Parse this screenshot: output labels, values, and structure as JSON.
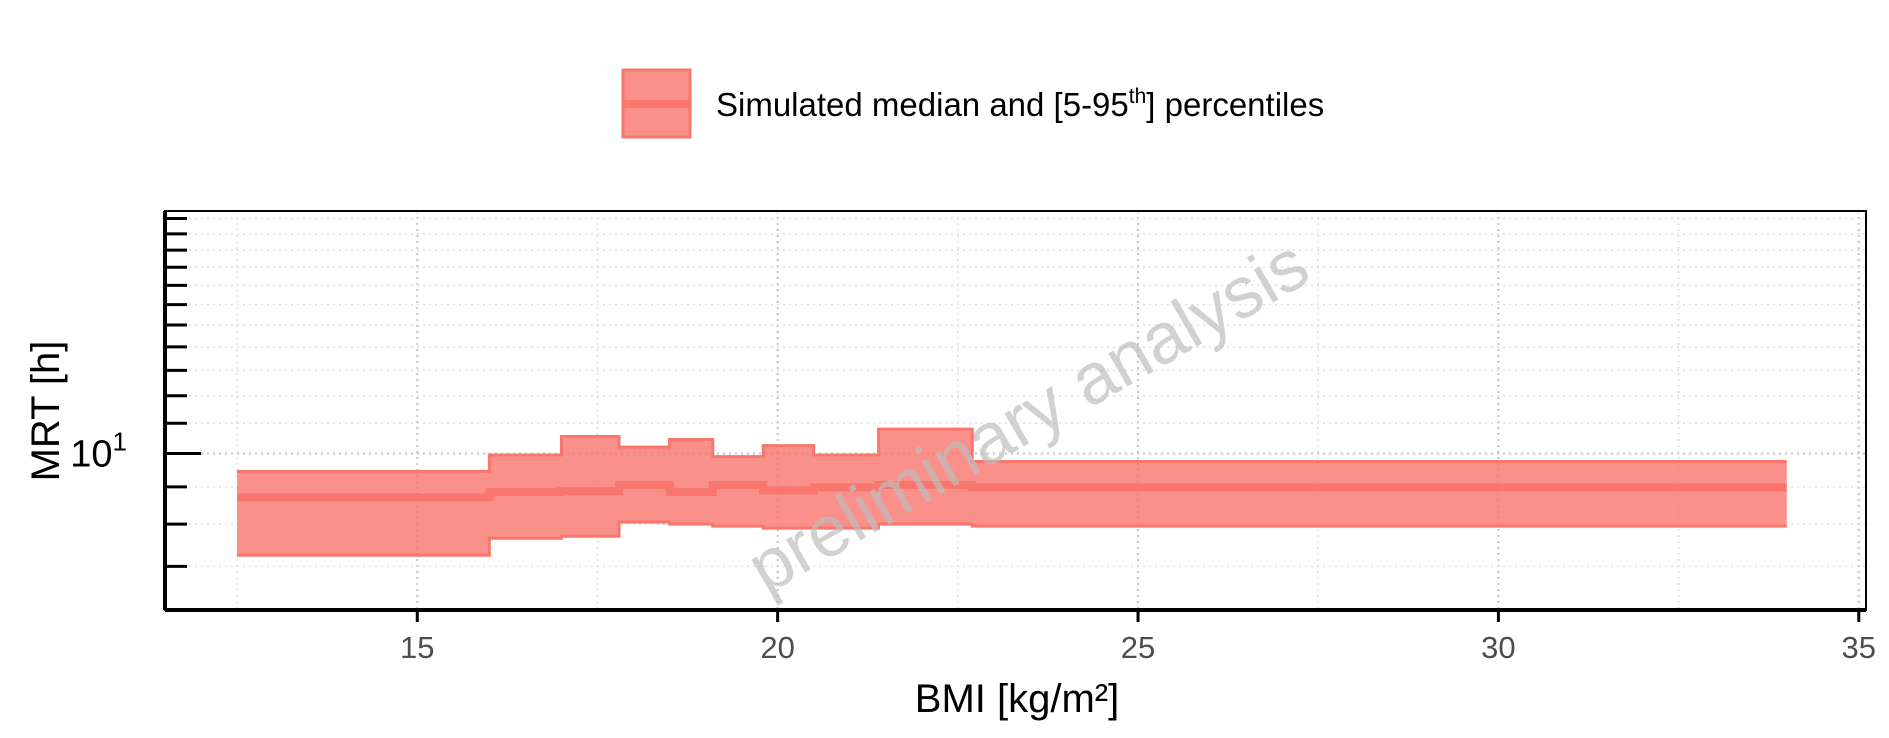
{
  "legend": {
    "label_main": "Simulated median and [5-95",
    "label_sup": "th",
    "label_tail": "] percentiles",
    "color": "#f8766d"
  },
  "watermark": "preliminary analysis",
  "chart_data": {
    "type": "area",
    "title": "",
    "xlabel": "BMI [kg/m²]",
    "ylabel": "MRT [h]",
    "xlim": [
      11.5,
      35.1
    ],
    "x_ticks": [
      15,
      20,
      25,
      30,
      35
    ],
    "y_scale": "log",
    "ylim": [
      6.1,
      21.5
    ],
    "y_major_ticks": [
      10
    ],
    "y_major_tick_labels": [
      {
        "base": "10",
        "exp": "1"
      }
    ],
    "grid": true,
    "legend_position": "top",
    "series": [
      {
        "name": "Simulated median and [5-95th] percentiles",
        "color": "#f8766d",
        "step": true,
        "bins": [
          {
            "x0": 12.5,
            "x1": 16.0,
            "median": 8.7,
            "p5": 7.25,
            "p95": 9.45
          },
          {
            "x0": 16.0,
            "x1": 17.0,
            "median": 8.85,
            "p5": 7.65,
            "p95": 9.95
          },
          {
            "x0": 17.0,
            "x1": 17.8,
            "median": 8.88,
            "p5": 7.7,
            "p95": 10.55
          },
          {
            "x0": 17.8,
            "x1": 18.5,
            "median": 9.05,
            "p5": 8.05,
            "p95": 10.2
          },
          {
            "x0": 18.5,
            "x1": 19.1,
            "median": 8.85,
            "p5": 8.0,
            "p95": 10.45
          },
          {
            "x0": 19.1,
            "x1": 19.8,
            "median": 9.05,
            "p5": 7.95,
            "p95": 9.9
          },
          {
            "x0": 19.8,
            "x1": 20.5,
            "median": 8.9,
            "p5": 7.9,
            "p95": 10.25
          },
          {
            "x0": 20.5,
            "x1": 21.4,
            "median": 8.98,
            "p5": 7.9,
            "p95": 9.95
          },
          {
            "x0": 21.4,
            "x1": 22.7,
            "median": 9.05,
            "p5": 8.0,
            "p95": 10.8
          },
          {
            "x0": 22.7,
            "x1": 34.0,
            "median": 8.98,
            "p5": 7.95,
            "p95": 9.75
          }
        ]
      }
    ]
  }
}
